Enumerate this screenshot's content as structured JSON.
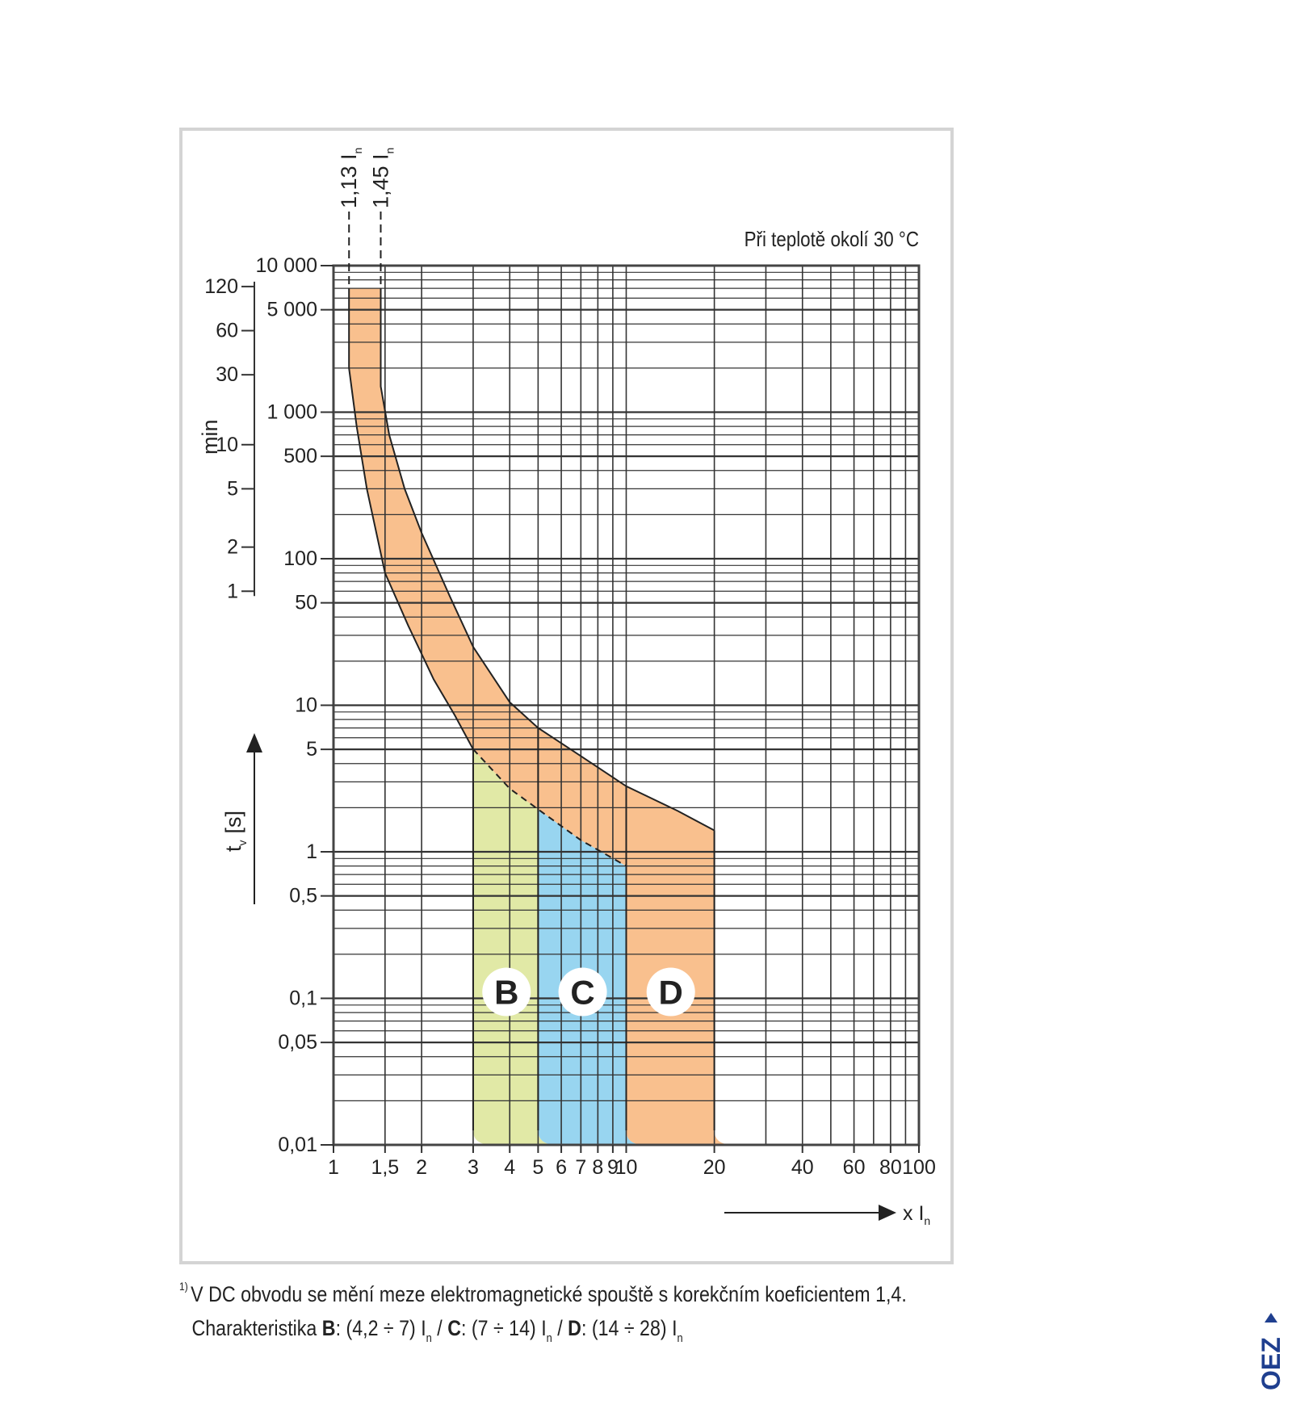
{
  "chart_data": {
    "type": "area",
    "title": "Při teplotě okolí 30 °C",
    "xlabel": "x I",
    "xlabel_sub": "n",
    "ylabel": "t",
    "ylabel_sub": "v",
    "ylabel_unit": "[s]",
    "y2label": "min",
    "x_scale": "log",
    "y_scale": "log",
    "xlim": [
      1,
      100
    ],
    "ylim": [
      0.01,
      10000
    ],
    "grid": true,
    "x_ticks": [
      {
        "v": 1,
        "t": "1"
      },
      {
        "v": 1.5,
        "t": "1,5"
      },
      {
        "v": 2,
        "t": "2"
      },
      {
        "v": 3,
        "t": "3"
      },
      {
        "v": 4,
        "t": "4"
      },
      {
        "v": 5,
        "t": "5"
      },
      {
        "v": 6,
        "t": "6"
      },
      {
        "v": 7,
        "t": "7"
      },
      {
        "v": 8,
        "t": "8"
      },
      {
        "v": 9,
        "t": "9"
      },
      {
        "v": 10,
        "t": "10"
      },
      {
        "v": 20,
        "t": "20"
      },
      {
        "v": 40,
        "t": "40"
      },
      {
        "v": 60,
        "t": "60"
      },
      {
        "v": 80,
        "t": "80"
      },
      {
        "v": 100,
        "t": "100"
      }
    ],
    "y_ticks": [
      {
        "v": 10000,
        "t": "10 000"
      },
      {
        "v": 5000,
        "t": "5 000"
      },
      {
        "v": 1000,
        "t": "1 000"
      },
      {
        "v": 500,
        "t": "500"
      },
      {
        "v": 100,
        "t": "100"
      },
      {
        "v": 50,
        "t": "50"
      },
      {
        "v": 10,
        "t": "10"
      },
      {
        "v": 5,
        "t": "5"
      },
      {
        "v": 1,
        "t": "1"
      },
      {
        "v": 0.5,
        "t": "0,5"
      },
      {
        "v": 0.1,
        "t": "0,1"
      },
      {
        "v": 0.05,
        "t": "0,05"
      },
      {
        "v": 0.01,
        "t": "0,01"
      }
    ],
    "min_ticks": [
      {
        "v": 120,
        "t": "120"
      },
      {
        "v": 60,
        "t": "60"
      },
      {
        "v": 30,
        "t": "30"
      },
      {
        "v": 10,
        "t": "10"
      },
      {
        "v": 5,
        "t": "5"
      },
      {
        "v": 2,
        "t": "2"
      },
      {
        "v": 1,
        "t": "1"
      }
    ],
    "reference_lines": [
      {
        "x": 1.13,
        "label": "1,13 I",
        "sub": "n"
      },
      {
        "x": 1.45,
        "label": "1,45 I",
        "sub": "n"
      }
    ],
    "thermal_band": {
      "color": "#f9c08e",
      "lower_curve": [
        [
          1.13,
          7000
        ],
        [
          1.13,
          2000
        ],
        [
          1.2,
          800
        ],
        [
          1.3,
          300
        ],
        [
          1.5,
          80
        ],
        [
          1.8,
          35
        ],
        [
          2.2,
          15
        ],
        [
          2.6,
          8.5
        ],
        [
          3,
          5
        ]
      ],
      "upper_curve": [
        [
          1.45,
          7000
        ],
        [
          1.45,
          1500
        ],
        [
          1.55,
          700
        ],
        [
          1.75,
          300
        ],
        [
          2,
          150
        ],
        [
          2.5,
          55
        ],
        [
          3,
          25
        ],
        [
          4,
          10.5
        ],
        [
          5,
          7
        ]
      ],
      "upper_extension": [
        [
          5,
          7
        ],
        [
          7,
          4.5
        ],
        [
          10,
          2.8
        ],
        [
          15,
          1.9
        ],
        [
          20,
          1.4
        ]
      ],
      "dashed_lower": [
        [
          3,
          5
        ],
        [
          4,
          2.7
        ],
        [
          5,
          1.95
        ],
        [
          7,
          1.2
        ],
        [
          10,
          0.8
        ]
      ]
    },
    "series": [
      {
        "name": "B",
        "range": [
          3,
          5
        ],
        "color": "#e1e9a6"
      },
      {
        "name": "C",
        "range": [
          5,
          10
        ],
        "color": "#98d5f0"
      },
      {
        "name": "D",
        "range": [
          10,
          20
        ],
        "color": "#f9c08e"
      }
    ]
  },
  "footnote": {
    "marker": "1)",
    "line1": "V DC obvodu se mění meze elektromagnetické spouště s korekčním koeficientem 1,4.",
    "line2_prefix": "Charakteristika ",
    "b_label": "B",
    "b_range": ": (4,2 ÷ 7) I",
    "sep1": " /  ",
    "c_label": "C",
    "c_range": ": (7 ÷ 14) I",
    "sep2": " /  ",
    "d_label": "D",
    "d_range": ": (14 ÷ 28) I",
    "sub": "n"
  },
  "logo": {
    "text": "OEZ",
    "color": "#1f3f8f"
  }
}
